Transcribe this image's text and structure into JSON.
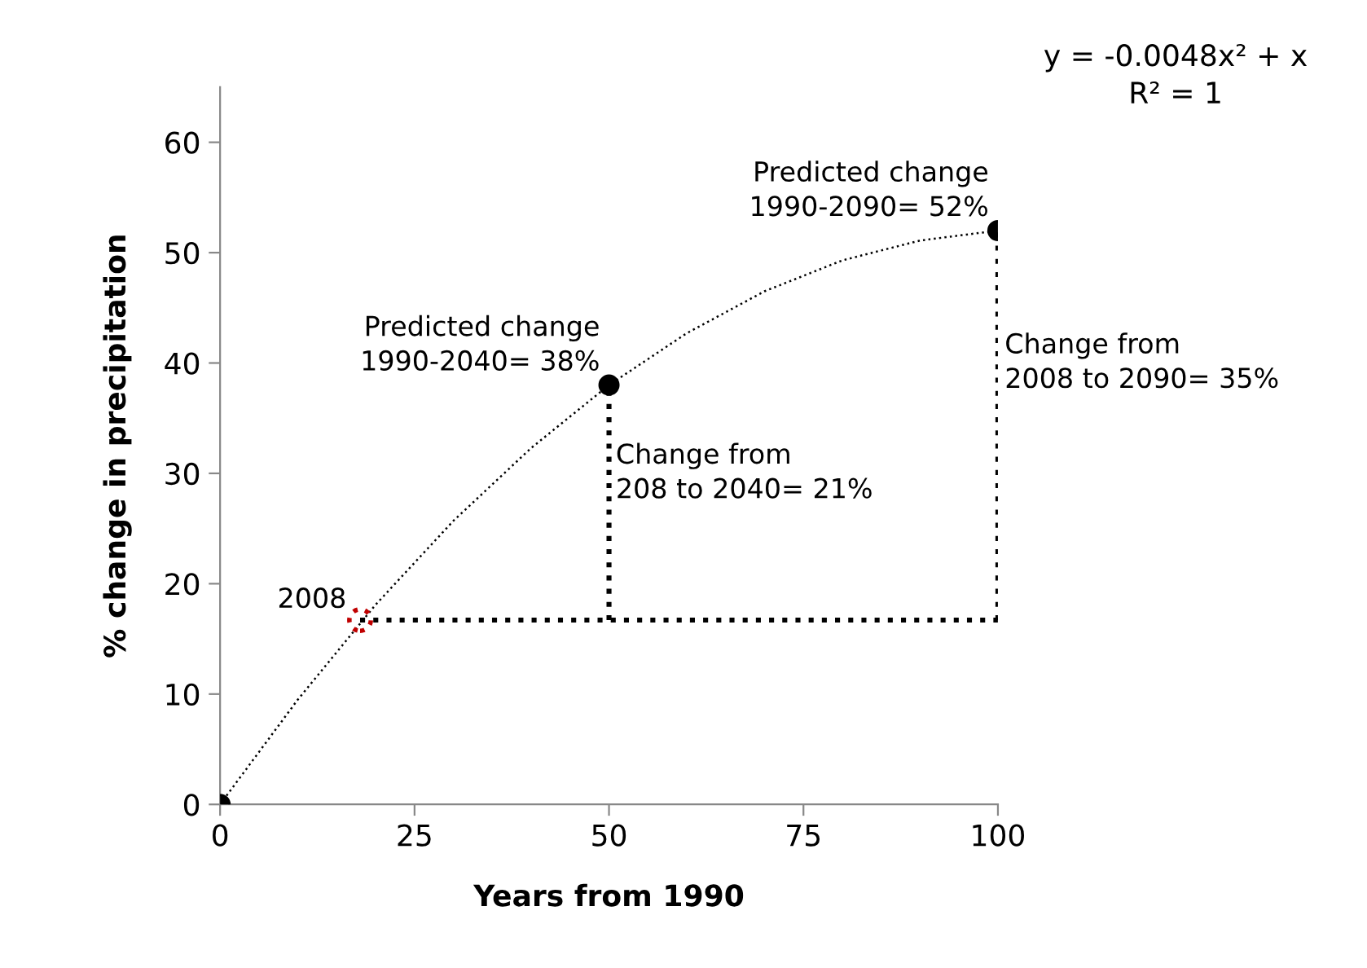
{
  "chart_data": {
    "type": "scatter",
    "xlabel": "Years from 1990",
    "ylabel": "% change in precipitation",
    "xlim": [
      0,
      100
    ],
    "ylim": [
      0,
      65
    ],
    "xticks": [
      0,
      25,
      50,
      75,
      100
    ],
    "yticks": [
      0,
      10,
      20,
      30,
      40,
      50,
      60
    ],
    "grid": false,
    "legend": false,
    "series": [
      {
        "type": "line",
        "color": "#000000",
        "line_style": "dotted",
        "marker": "none",
        "x": [
          0,
          10,
          20,
          30,
          40,
          50,
          60,
          70,
          80,
          90,
          100
        ],
        "values": [
          0,
          9.5,
          18.1,
          25.7,
          32.3,
          38,
          42.7,
          46.5,
          49.3,
          51.1,
          52
        ]
      },
      {
        "type": "line",
        "color": "#000000",
        "line_style": "dotted",
        "marker": "none",
        "x": [
          18,
          100
        ],
        "values": [
          16.7,
          16.7
        ]
      },
      {
        "type": "line",
        "color": "#000000",
        "line_style": "dotted",
        "marker": "none",
        "x": [
          50,
          50
        ],
        "values": [
          16.7,
          38
        ]
      },
      {
        "type": "line",
        "color": "#000000",
        "line_style": "dotted",
        "marker": "none",
        "x": [
          100,
          100
        ],
        "values": [
          16.7,
          52
        ]
      },
      {
        "color": "#000000",
        "marker": "circle",
        "x": [
          0,
          50,
          100
        ],
        "values": [
          0,
          38,
          52
        ]
      },
      {
        "color": "#c00000",
        "marker": "circle",
        "line_style": "dotted",
        "x": [
          18
        ],
        "values": [
          16.7
        ]
      }
    ],
    "annotations": [
      {
        "text": "Predicted change\n1990-2040= 38%",
        "x": 50,
        "y": 38
      },
      {
        "text": "Predicted change\n1990-2090= 52%",
        "x": 100,
        "y": 52
      },
      {
        "text": "Change from\n208 to 2040= 21%",
        "x": 50,
        "y": 30
      },
      {
        "text": "Change from\n2008 to 2090= 35%",
        "x": 100,
        "y": 40
      },
      {
        "text": "2008",
        "x": 18,
        "y": 16.7
      },
      "y = -0.0048x² + x\nR² = 1"
    ]
  }
}
